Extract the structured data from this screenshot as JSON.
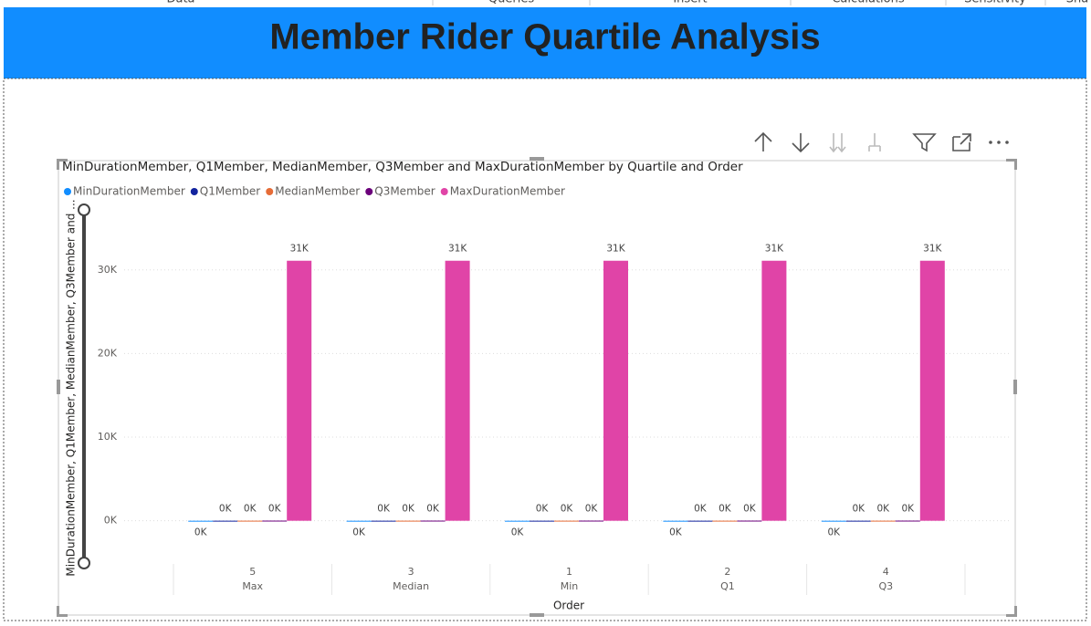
{
  "ribbon": {
    "labels": [
      "Data",
      "Queries",
      "Insert",
      "Calculations",
      "Sensitivity",
      "Sha"
    ]
  },
  "banner": {
    "title": "Member Rider Quartile Analysis"
  },
  "chart_data": {
    "type": "bar",
    "title": "MinDurationMember, Q1Member, MedianMember, Q3Member and MaxDurationMember by Quartile and Order",
    "x_label": "Order",
    "y_label": "MinDurationMember, Q1Member, MedianMember, Q3Member and ...",
    "order_labels": [
      "5",
      "3",
      "1",
      "2",
      "4"
    ],
    "categories": [
      "Max",
      "Median",
      "Min",
      "Q1",
      "Q3"
    ],
    "series": [
      {
        "name": "MinDurationMember",
        "color": "#118DFF",
        "values": [
          1,
          1,
          1,
          1,
          1
        ],
        "value_labels": [
          "0K",
          "0K",
          "0K",
          "0K",
          "0K"
        ]
      },
      {
        "name": "Q1Member",
        "color": "#12239E",
        "values": [
          6,
          6,
          6,
          6,
          6
        ],
        "value_labels": [
          "0K",
          "0K",
          "0K",
          "0K",
          "0K"
        ]
      },
      {
        "name": "MedianMember",
        "color": "#E66C37",
        "values": [
          10,
          10,
          10,
          10,
          10
        ],
        "value_labels": [
          "0K",
          "0K",
          "0K",
          "0K",
          "0K"
        ]
      },
      {
        "name": "Q3Member",
        "color": "#6B007B",
        "values": [
          18,
          18,
          18,
          18,
          18
        ],
        "value_labels": [
          "0K",
          "0K",
          "0K",
          "0K",
          "0K"
        ]
      },
      {
        "name": "MaxDurationMember",
        "color": "#E044A7",
        "values": [
          31100,
          31100,
          31100,
          31100,
          31100
        ],
        "value_labels": [
          "31K",
          "31K",
          "31K",
          "31K",
          "31K"
        ]
      }
    ],
    "ylim": [
      -2000,
      35000
    ],
    "yticks": [
      {
        "value": 0,
        "label": "0K"
      },
      {
        "value": 10000,
        "label": "10K"
      },
      {
        "value": 20000,
        "label": "20K"
      },
      {
        "value": 30000,
        "label": "30K"
      }
    ],
    "grid": true,
    "legend": "top-left"
  }
}
